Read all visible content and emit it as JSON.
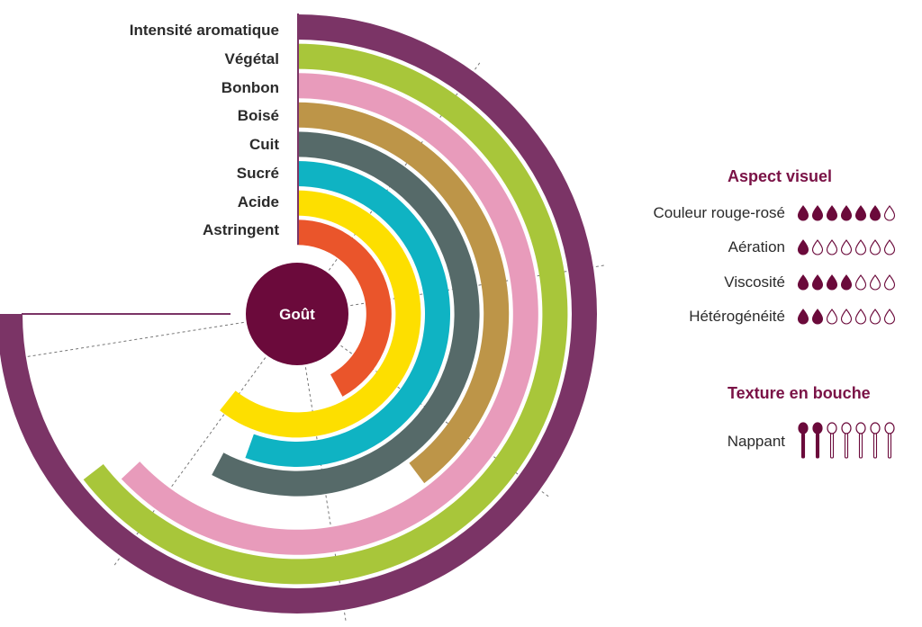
{
  "chart_data": {
    "type": "radial-bar",
    "center_label": "Goût",
    "max_value": 10,
    "series": [
      {
        "name": "Intensité aromatique",
        "value": 10,
        "color": "#7b3466"
      },
      {
        "name": "Végétal",
        "value": 8.6,
        "color": "#a8c63a"
      },
      {
        "name": "Bonbon",
        "value": 8.4,
        "color": "#e89bbb"
      },
      {
        "name": "Boisé",
        "value": 5.3,
        "color": "#bd9548"
      },
      {
        "name": "Cuit",
        "value": 7.7,
        "color": "#566a69"
      },
      {
        "name": "Sucré",
        "value": 7.4,
        "color": "#0fb3c3"
      },
      {
        "name": "Acide",
        "value": 8.1,
        "color": "#fddf00"
      },
      {
        "name": "Astringent",
        "value": 5.6,
        "color": "#ea552b"
      }
    ]
  },
  "visual_aspect": {
    "title": "Aspect visuel",
    "max": 7,
    "items": [
      {
        "label": "Couleur rouge-rosé",
        "value": 6
      },
      {
        "label": "Aération",
        "value": 1
      },
      {
        "label": "Viscosité",
        "value": 4
      },
      {
        "label": "Hétérogénéité",
        "value": 2
      }
    ]
  },
  "mouth_texture": {
    "title": "Texture en bouche",
    "max": 7,
    "items": [
      {
        "label": "Nappant",
        "value": 2
      }
    ]
  },
  "colors": {
    "accent": "#6b0a3b",
    "title": "#7a1246",
    "guide_line": "#7b3466",
    "dashes": "#777777"
  }
}
